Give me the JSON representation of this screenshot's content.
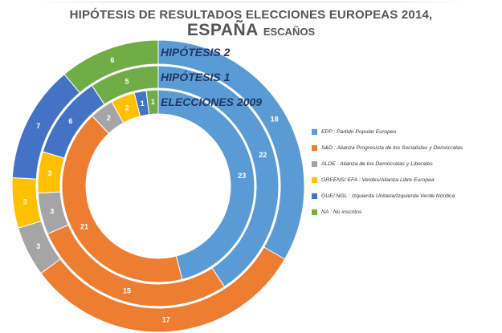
{
  "title": {
    "line1": "HIPÓTESIS DE RESULTADOS ELECCIONES EUROPEAS 2014,",
    "line2_main": "ESPAÑA",
    "line2_sub": "ESCAÑOS"
  },
  "chart_data": {
    "type": "donut",
    "categories": [
      "EPP",
      "S&D",
      "ALDE",
      "GREENS/ EFA",
      "GUE/ NGL",
      "NA"
    ],
    "series": [
      {
        "name": "ELECCIONES 2009",
        "values": [
          23,
          21,
          2,
          2,
          1,
          1
        ]
      },
      {
        "name": "HIPÓTESIS 1",
        "values": [
          22,
          15,
          3,
          3,
          6,
          5
        ]
      },
      {
        "name": "HIPÓTESIS 2",
        "values": [
          18,
          17,
          3,
          3,
          7,
          6
        ]
      }
    ],
    "colors": [
      "#5b9bd5",
      "#ed7d31",
      "#a5a5a5",
      "#ffc000",
      "#4472c4",
      "#70ad47"
    ],
    "legend_position": "right"
  },
  "legend": [
    {
      "label": "EPP : Partido Popular Europeo",
      "color": "#5b9bd5"
    },
    {
      "label": "S&D : Alianza Progresista de los Socialistas y Demócratas",
      "color": "#ed7d31"
    },
    {
      "label": "ALDE : Alianza de los Demócratas y Liberales",
      "color": "#a5a5a5"
    },
    {
      "label": "GREENS/ EFA : Verdes/Alianza Libre Europea",
      "color": "#ffc000"
    },
    {
      "label": "GUE/ NGL : Izquierda Unitaria/Izquierda Verde Nórdica",
      "color": "#4472c4"
    },
    {
      "label": "NA : No inscritos",
      "color": "#70ad47"
    }
  ]
}
